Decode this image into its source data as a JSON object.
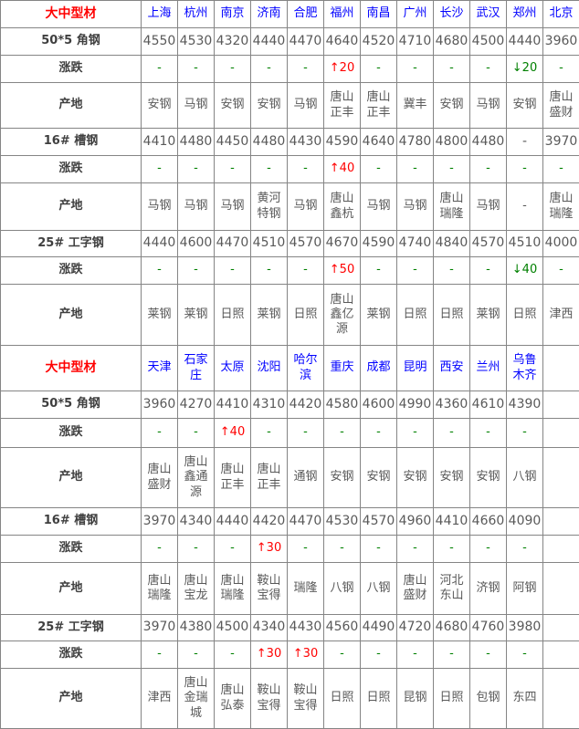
{
  "table": {
    "row_labels": {
      "change": "涨跌",
      "origin": "产地"
    },
    "colors": {
      "category_red": "#ff0000",
      "city_blue": "#0000ff",
      "up_red": "#ff0000",
      "down_green": "#008000",
      "dash_green": "#008000",
      "value_gray": "#595959"
    },
    "sections": [
      {
        "category": "大中型材",
        "cities": [
          "上海",
          "杭州",
          "南京",
          "济南",
          "合肥",
          "福州",
          "南昌",
          "广州",
          "长沙",
          "武汉",
          "郑州",
          "北京"
        ],
        "products": [
          {
            "name": "50*5 角钢",
            "prices": [
              "4550",
              "4530",
              "4320",
              "4440",
              "4470",
              "4640",
              "4520",
              "4710",
              "4680",
              "4500",
              "4440",
              "3960"
            ],
            "changes": [
              "-",
              "-",
              "-",
              "-",
              "-",
              "↑20",
              "-",
              "-",
              "-",
              "-",
              "↓20",
              "-"
            ],
            "origins": [
              "安钢",
              "马钢",
              "安钢",
              "安钢",
              "马钢",
              "唐山正丰",
              "唐山正丰",
              "冀丰",
              "安钢",
              "马钢",
              "安钢",
              "唐山盛财"
            ]
          },
          {
            "name": "16# 槽钢",
            "prices": [
              "4410",
              "4480",
              "4450",
              "4480",
              "4430",
              "4590",
              "4640",
              "4780",
              "4800",
              "4480",
              "-",
              "3970"
            ],
            "changes": [
              "-",
              "-",
              "-",
              "-",
              "-",
              "↑40",
              "-",
              "-",
              "-",
              "-",
              "-",
              "-"
            ],
            "origins": [
              "马钢",
              "马钢",
              "马钢",
              "黄河特钢",
              "马钢",
              "唐山鑫杭",
              "马钢",
              "马钢",
              "唐山瑞隆",
              "马钢",
              "-",
              "唐山瑞隆"
            ]
          },
          {
            "name": "25# 工字钢",
            "prices": [
              "4440",
              "4600",
              "4470",
              "4510",
              "4570",
              "4670",
              "4590",
              "4740",
              "4840",
              "4570",
              "4510",
              "4000"
            ],
            "changes": [
              "-",
              "-",
              "-",
              "-",
              "-",
              "↑50",
              "-",
              "-",
              "-",
              "-",
              "↓40",
              "-"
            ],
            "origins": [
              "莱钢",
              "莱钢",
              "日照",
              "莱钢",
              "日照",
              "唐山鑫亿源",
              "莱钢",
              "日照",
              "日照",
              "莱钢",
              "日照",
              "津西"
            ]
          }
        ]
      },
      {
        "category": "大中型材",
        "cities": [
          "天津",
          "石家庄",
          "太原",
          "沈阳",
          "哈尔滨",
          "重庆",
          "成都",
          "昆明",
          "西安",
          "兰州",
          "乌鲁木齐",
          ""
        ],
        "products": [
          {
            "name": "50*5 角钢",
            "prices": [
              "3960",
              "4270",
              "4410",
              "4310",
              "4420",
              "4580",
              "4600",
              "4990",
              "4360",
              "4610",
              "4390",
              ""
            ],
            "changes": [
              "-",
              "-",
              "↑40",
              "-",
              "-",
              "-",
              "-",
              "-",
              "-",
              "-",
              "-",
              ""
            ],
            "origins": [
              "唐山盛财",
              "唐山鑫通源",
              "唐山正丰",
              "唐山正丰",
              "通钢",
              "安钢",
              "安钢",
              "安钢",
              "安钢",
              "安钢",
              "八钢",
              ""
            ]
          },
          {
            "name": "16# 槽钢",
            "prices": [
              "3970",
              "4340",
              "4440",
              "4420",
              "4470",
              "4530",
              "4570",
              "4960",
              "4410",
              "4660",
              "4090",
              ""
            ],
            "changes": [
              "-",
              "-",
              "-",
              "↑30",
              "-",
              "-",
              "-",
              "-",
              "-",
              "-",
              "-",
              ""
            ],
            "origins": [
              "唐山瑞隆",
              "唐山宝龙",
              "唐山瑞隆",
              "鞍山宝得",
              "瑞隆",
              "八钢",
              "八钢",
              "唐山盛财",
              "河北东山",
              "济钢",
              "阿钢",
              ""
            ]
          },
          {
            "name": "25# 工字钢",
            "prices": [
              "3970",
              "4380",
              "4500",
              "4340",
              "4430",
              "4560",
              "4490",
              "4720",
              "4680",
              "4760",
              "3980",
              ""
            ],
            "changes": [
              "-",
              "-",
              "-",
              "↑30",
              "↑30",
              "-",
              "-",
              "-",
              "-",
              "-",
              "-",
              ""
            ],
            "origins": [
              "津西",
              "唐山金瑞城",
              "唐山弘泰",
              "鞍山宝得",
              "鞍山宝得",
              "日照",
              "日照",
              "昆钢",
              "日照",
              "包钢",
              "东四",
              ""
            ]
          }
        ]
      }
    ]
  }
}
